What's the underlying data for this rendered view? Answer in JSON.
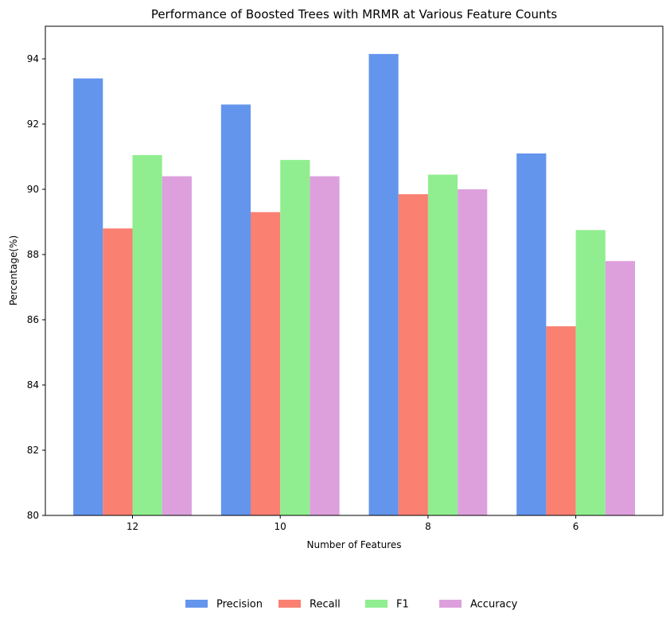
{
  "chart_data": {
    "type": "bar",
    "title": "Performance of Boosted Trees with MRMR at Various Feature Counts",
    "xlabel": "Number of Features",
    "ylabel": "Percentage(%)",
    "categories": [
      "12",
      "10",
      "8",
      "6"
    ],
    "ylim": [
      80,
      95
    ],
    "yticks": [
      80,
      82,
      84,
      86,
      88,
      90,
      92,
      94
    ],
    "grid": false,
    "legend_position": "bottom-center",
    "series": [
      {
        "name": "Precision",
        "color": "#6495ED",
        "values": [
          93.4,
          92.6,
          94.15,
          91.1
        ]
      },
      {
        "name": "Recall",
        "color": "#FA8072",
        "values": [
          88.8,
          89.3,
          89.85,
          85.8
        ]
      },
      {
        "name": "F1",
        "color": "#90EE90",
        "values": [
          91.05,
          90.9,
          90.45,
          88.75
        ]
      },
      {
        "name": "Accuracy",
        "color": "#DDA0DD",
        "values": [
          90.4,
          90.4,
          90.0,
          87.8
        ]
      }
    ]
  }
}
